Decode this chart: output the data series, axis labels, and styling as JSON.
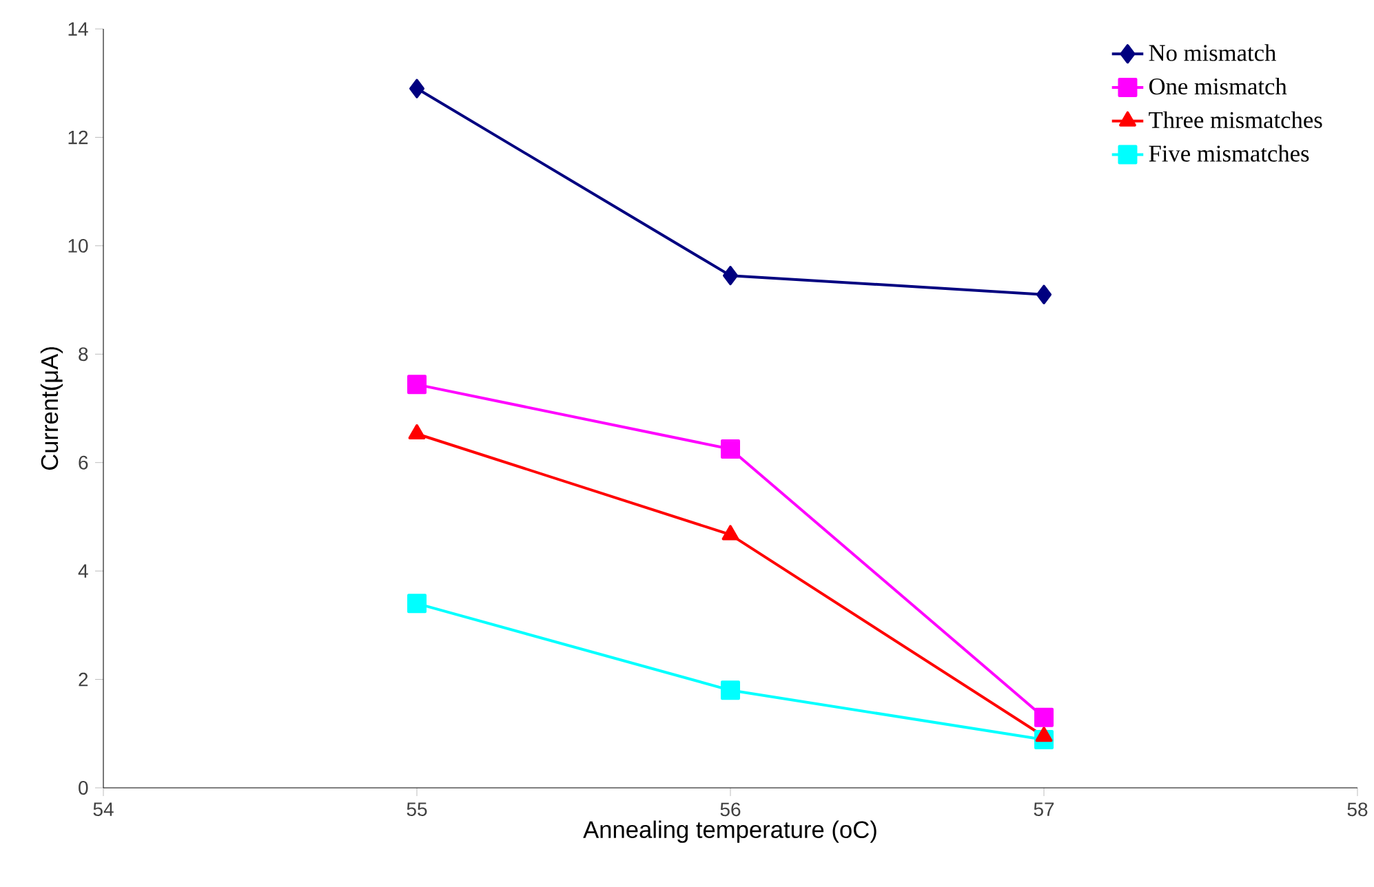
{
  "chart_data": {
    "type": "line",
    "xlabel": "Annealing temperature (oC)",
    "ylabel": "Current(μA)",
    "x": [
      55,
      56,
      57
    ],
    "series": [
      {
        "name": "No mismatch",
        "color": "#000080",
        "marker": "diamond",
        "values": [
          12.9,
          9.45,
          9.1
        ]
      },
      {
        "name": "One mismatch",
        "color": "#ff00ff",
        "marker": "square",
        "values": [
          7.44,
          6.25,
          1.3
        ]
      },
      {
        "name": "Three mismatches",
        "color": "#ff0000",
        "marker": "triangle",
        "values": [
          6.53,
          4.67,
          0.95
        ]
      },
      {
        "name": "Five mismatches",
        "color": "#00ffff",
        "marker": "square",
        "values": [
          3.4,
          1.8,
          0.89
        ]
      }
    ],
    "xlim": [
      54,
      58
    ],
    "xticks": [
      54,
      55,
      56,
      57,
      58
    ],
    "ylim": [
      0,
      14
    ],
    "yticks": [
      0,
      2,
      4,
      6,
      8,
      10,
      12,
      14
    ],
    "grid": false,
    "legend": "top right",
    "line_style": "solid"
  }
}
